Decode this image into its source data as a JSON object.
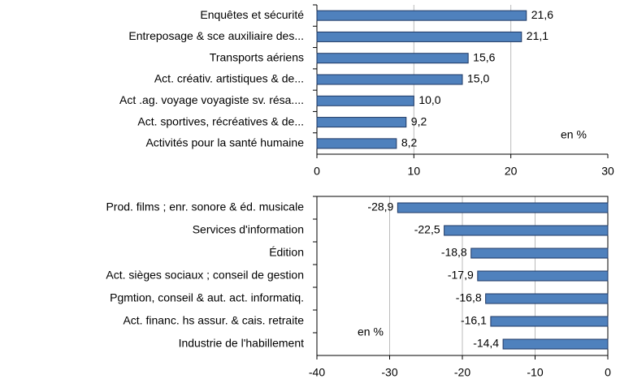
{
  "chart_data": [
    {
      "type": "barh",
      "categories": [
        "Enquêtes et sécurité",
        "Entreposage & sce auxiliaire des...",
        "Transports aériens",
        "Act. créativ. artistiques & de...",
        "Act .ag. voyage voyagiste sv. résa....",
        "Act. sportives, récréatives & de...",
        "Activités pour la santé humaine"
      ],
      "values": [
        21.6,
        21.1,
        15.6,
        15.0,
        10.0,
        9.2,
        8.2
      ],
      "value_labels": [
        "21,6",
        "21,1",
        "15,6",
        "15,0",
        "10,0",
        "9,2",
        "8,2"
      ],
      "color": "#4f81bd",
      "xlim": [
        0,
        30
      ],
      "xticks": [
        0,
        10,
        20,
        30
      ],
      "grid": true,
      "annotation": "en %"
    },
    {
      "type": "barh",
      "categories": [
        "Prod. films ; enr. sonore & éd. musicale",
        "Services d'information",
        "Édition",
        "Act. sièges sociaux ; conseil de gestion",
        "Pgmtion, conseil & aut. act. informatiq.",
        "Act. financ. hs assur. & cais. retraite",
        "Industrie de l'habillement"
      ],
      "values": [
        -28.9,
        -22.5,
        -18.8,
        -17.9,
        -16.8,
        -16.1,
        -14.4
      ],
      "value_labels": [
        "-28,9",
        "-22,5",
        "-18,8",
        "-17,9",
        "-16,8",
        "-16,1",
        "-14,4"
      ],
      "color": "#4f81bd",
      "xlim": [
        -40,
        0
      ],
      "xticks": [
        -40,
        -30,
        -20,
        -10,
        0
      ],
      "grid": true,
      "annotation": "en %"
    }
  ]
}
